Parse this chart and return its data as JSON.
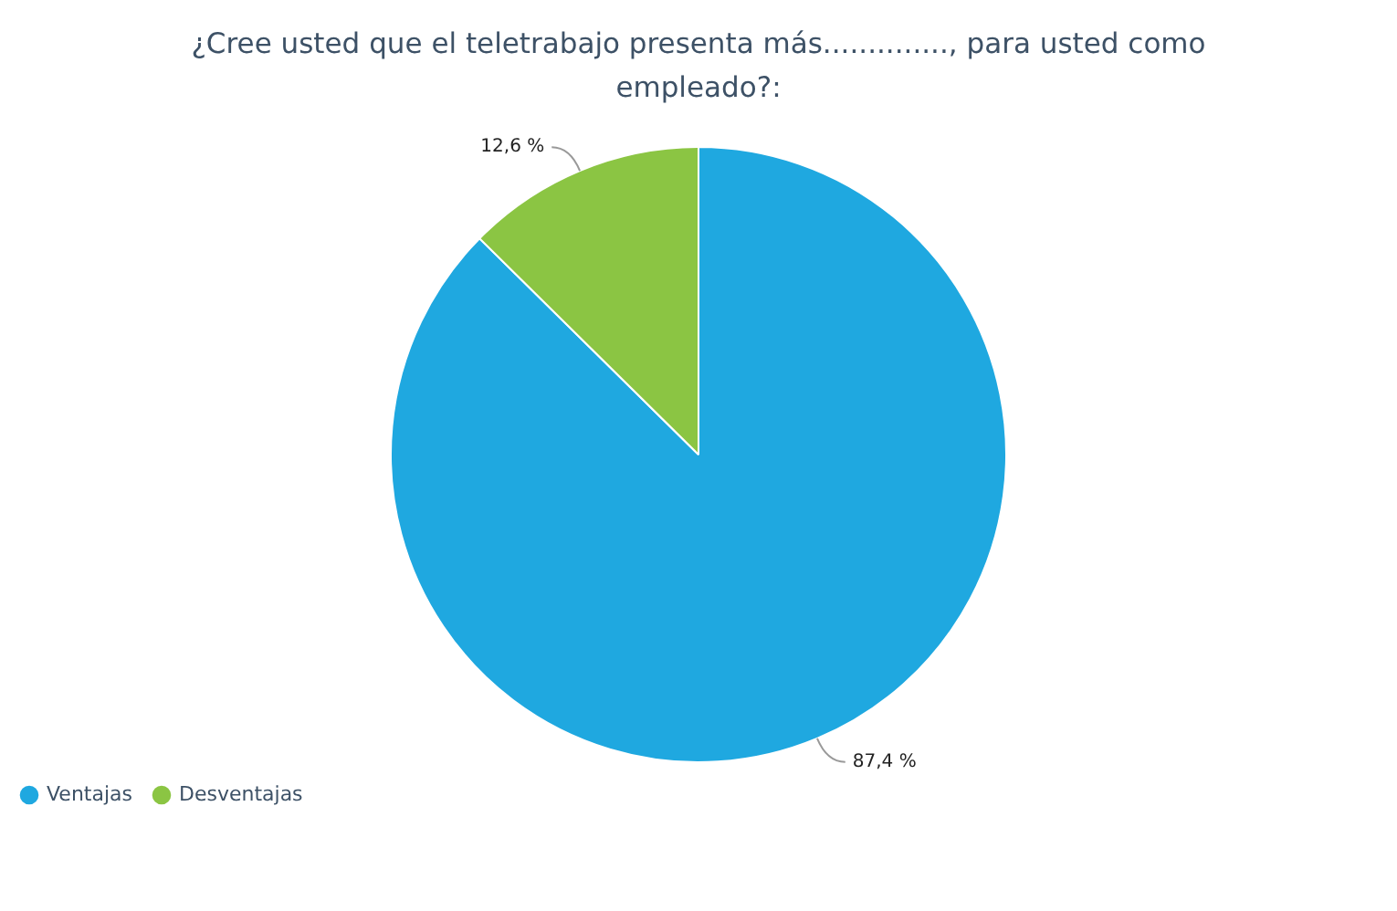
{
  "chart_data": {
    "type": "pie",
    "title": "¿Cree usted que el teletrabajo presenta más.............., para usted como empleado?:",
    "categories": [
      "Ventajas",
      "Desventajas"
    ],
    "values": [
      87.4,
      12.6
    ],
    "colors": [
      "#1fa8e0",
      "#8bc543"
    ],
    "value_labels": [
      "87,4 %",
      "12,6 %"
    ],
    "legend": "bottom left"
  }
}
